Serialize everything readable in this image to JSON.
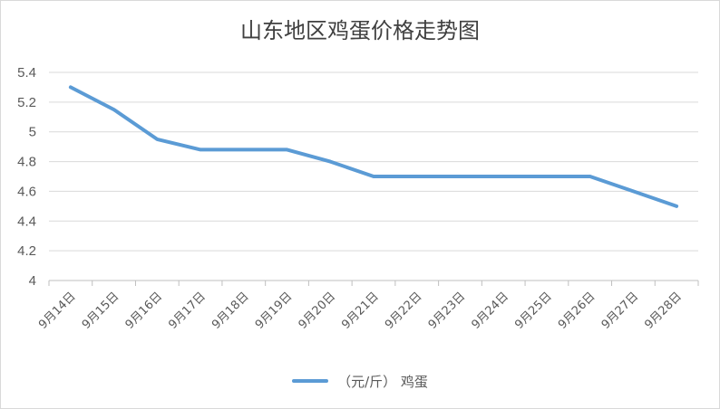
{
  "chart_data": {
    "type": "line",
    "title": "山东地区鸡蛋价格走势图",
    "categories": [
      "9月14日",
      "9月15日",
      "9月16日",
      "9月17日",
      "9月18日",
      "9月19日",
      "9月20日",
      "9月21日",
      "9月22日",
      "9月23日",
      "9月24日",
      "9月25日",
      "9月26日",
      "9月27日",
      "9月28日"
    ],
    "series": [
      {
        "name": "（元/斤）  鸡蛋",
        "color": "#5b9bd5",
        "values": [
          5.3,
          5.15,
          4.95,
          4.88,
          4.88,
          4.88,
          4.8,
          4.7,
          4.7,
          4.7,
          4.7,
          4.7,
          4.7,
          4.6,
          4.5
        ]
      }
    ],
    "ylim": [
      4,
      5.4
    ],
    "yticks": [
      "4",
      "4.2",
      "4.4",
      "4.6",
      "4.8",
      "5",
      "5.2",
      "5.4"
    ],
    "grid": true,
    "legend_position": "bottom",
    "xlabel": "",
    "ylabel": ""
  }
}
